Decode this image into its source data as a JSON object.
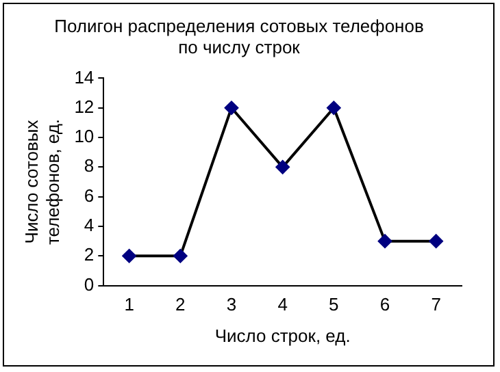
{
  "chart_data": {
    "type": "line",
    "title": "Полигон распределения сотовых телефонов по числу строк",
    "xlabel": "Число строк, ед.",
    "ylabel": "Число сотовых телефонов, ед.",
    "categories": [
      "1",
      "2",
      "3",
      "4",
      "5",
      "6",
      "7"
    ],
    "series": [
      {
        "color": "#000000",
        "values": [
          2,
          2,
          12,
          8,
          12,
          3,
          3
        ]
      }
    ],
    "ylim": [
      0,
      14
    ],
    "yticks": [
      0,
      2,
      4,
      6,
      8,
      10,
      12,
      14
    ],
    "grid": false,
    "legend": false,
    "marker": "diamond",
    "line_style": "solid"
  }
}
